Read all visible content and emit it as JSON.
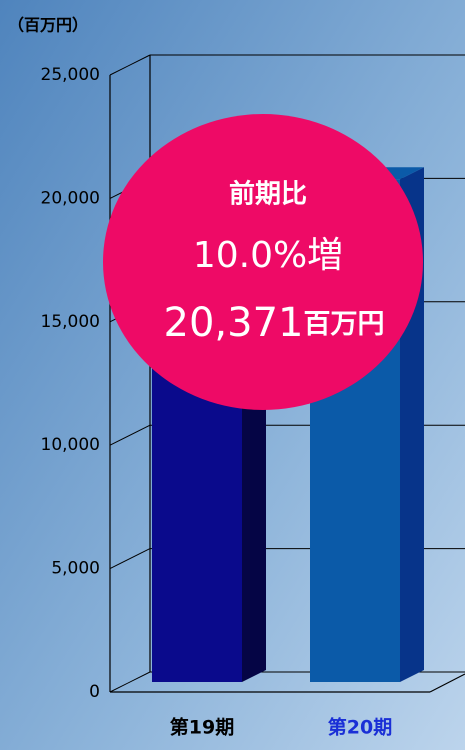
{
  "chart_data": {
    "type": "bar3d",
    "y_axis_label": "（百万円）",
    "categories": [
      "第19期",
      "第20期"
    ],
    "values": [
      18519,
      20371
    ],
    "colors": [
      "#0a0a8c",
      "#0b5aa8"
    ],
    "side_colors": [
      "#050545",
      "#07348a"
    ],
    "label_colors": [
      "#000000",
      "#1a2fd6"
    ],
    "ylim": [
      0,
      25000
    ],
    "yticks": [
      {
        "value": 0,
        "label": "0"
      },
      {
        "value": 5000,
        "label": "5,000"
      },
      {
        "value": 10000,
        "label": "10,000"
      },
      {
        "value": 15000,
        "label": "15,000"
      },
      {
        "value": 20000,
        "label": "20,000"
      },
      {
        "value": 25000,
        "label": "25,000"
      }
    ],
    "grid": true,
    "annotation": {
      "line1": "前期比",
      "line2": "10.0%増",
      "line3_number": "20,371",
      "line3_unit": "百万円",
      "color": "#ee0a66"
    }
  }
}
